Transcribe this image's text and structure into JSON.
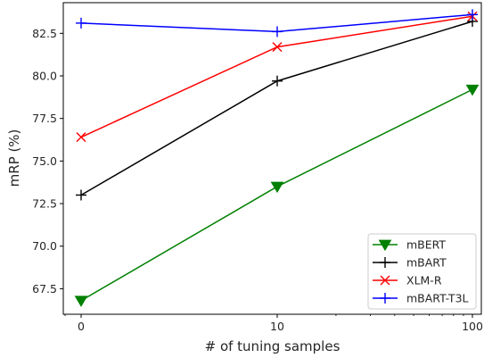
{
  "chart_data": {
    "type": "line",
    "title": "",
    "xlabel": "# of tuning samples",
    "ylabel": "mRP (%)",
    "x": [
      "0",
      "10",
      "100"
    ],
    "xticks": [
      "0",
      "10",
      "100"
    ],
    "yticks": [
      "67.5",
      "70.0",
      "72.5",
      "75.0",
      "77.5",
      "80.0",
      "82.5"
    ],
    "ylim": [
      66.0,
      84.3
    ],
    "grid": false,
    "legend_position": "lower-right",
    "series": [
      {
        "name": "mBERT",
        "values": [
          66.8,
          73.5,
          79.2
        ],
        "color": "#008000",
        "marker": "triangle-down"
      },
      {
        "name": "mBART",
        "values": [
          73.0,
          79.7,
          83.2
        ],
        "color": "#000000",
        "marker": "plus"
      },
      {
        "name": "XLM-R",
        "values": [
          76.4,
          81.7,
          83.5
        ],
        "color": "#ff0000",
        "marker": "x"
      },
      {
        "name": "mBART-T3L",
        "values": [
          83.1,
          82.6,
          83.6
        ],
        "color": "#0000ff",
        "marker": "plus"
      }
    ]
  }
}
